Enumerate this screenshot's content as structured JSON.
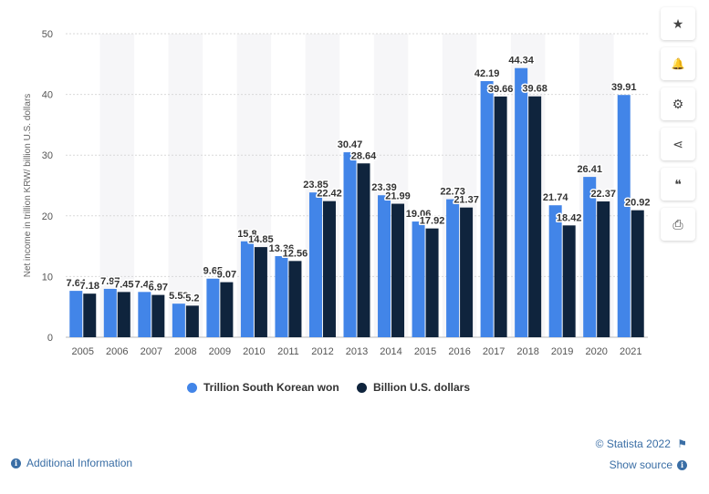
{
  "chart_data": {
    "type": "bar",
    "categories": [
      "2005",
      "2006",
      "2007",
      "2008",
      "2009",
      "2010",
      "2011",
      "2012",
      "2013",
      "2014",
      "2015",
      "2016",
      "2017",
      "2018",
      "2019",
      "2020",
      "2021"
    ],
    "series": [
      {
        "name": "Trillion South Korean won",
        "color": "#4285e8",
        "values": [
          7.64,
          7.97,
          7.46,
          5.53,
          9.65,
          15.8,
          13.36,
          23.85,
          30.47,
          23.39,
          19.06,
          22.73,
          42.19,
          44.34,
          21.74,
          26.41,
          39.91
        ],
        "labels": [
          "7.64",
          "7.97",
          "7.46",
          "5.53",
          "9.65",
          "15.8",
          "13.36",
          "23.85",
          "30.47",
          "23.39",
          "19.06",
          "22.73",
          "42.19",
          "44.34",
          "21.74",
          "26.41",
          "39.91"
        ]
      },
      {
        "name": "Billion U.S. dollars",
        "color": "#0f243d",
        "values": [
          7.18,
          7.45,
          6.97,
          5.2,
          9.07,
          14.85,
          12.56,
          22.42,
          28.64,
          21.99,
          17.92,
          21.37,
          39.66,
          39.68,
          18.42,
          22.37,
          20.92
        ],
        "labels": [
          "7.18",
          "7.45",
          "6.97",
          "5.2",
          "9.07",
          "14.85",
          "12.56",
          "22.42",
          "28.64",
          "21.99",
          "17.92",
          "21.37",
          "39.66",
          "39.68",
          "18.42",
          "22.37",
          "20.92"
        ]
      }
    ],
    "ylabel": "Net income in trillion KRW/ billion U.S. dollars",
    "ylim": [
      0,
      50
    ],
    "yticks": [
      0,
      10,
      20,
      30,
      40,
      50
    ],
    "grid": true,
    "legend_position": "bottom"
  },
  "toolbar": {
    "buttons": [
      {
        "name": "star-icon",
        "glyph": "★"
      },
      {
        "name": "bell-icon",
        "glyph": "🔔"
      },
      {
        "name": "gear-icon",
        "glyph": "⚙"
      },
      {
        "name": "share-icon",
        "glyph": "⋖"
      },
      {
        "name": "quote-icon",
        "glyph": "❝"
      },
      {
        "name": "print-icon",
        "glyph": "⎙"
      }
    ]
  },
  "footer": {
    "additional_info": "Additional Information",
    "copyright": "© Statista 2022",
    "show_source": "Show source",
    "info_glyph": "i",
    "flag_glyph": "⚑"
  }
}
